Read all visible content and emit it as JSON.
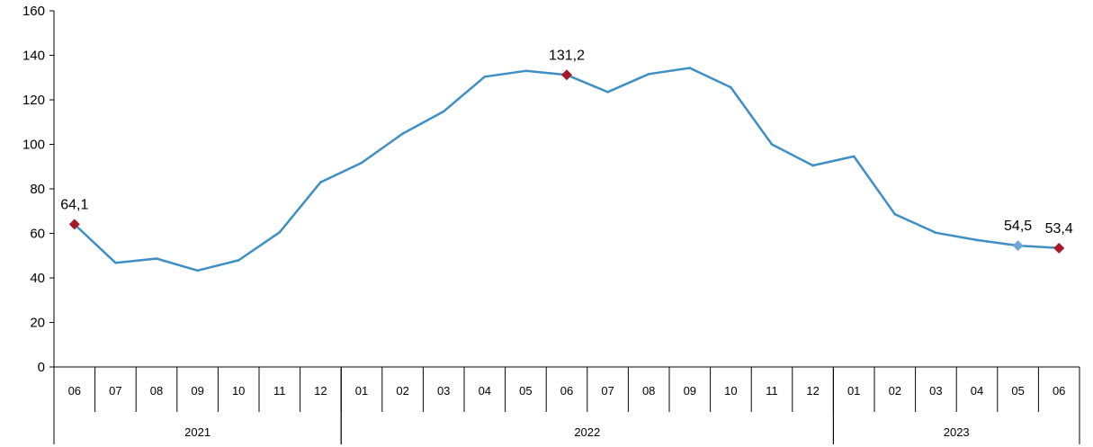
{
  "chart_data": {
    "type": "line",
    "title": "",
    "xlabel": "",
    "ylabel": "",
    "ylim": [
      0,
      160
    ],
    "yticks": [
      "0",
      "20",
      "40",
      "60",
      "80",
      "100",
      "120",
      "140",
      "160"
    ],
    "grid": false,
    "categories": [
      "06",
      "07",
      "08",
      "09",
      "10",
      "11",
      "12",
      "01",
      "02",
      "03",
      "04",
      "05",
      "06",
      "07",
      "08",
      "09",
      "10",
      "11",
      "12",
      "01",
      "02",
      "03",
      "04",
      "05",
      "06"
    ],
    "year_groups": [
      {
        "label": "2021",
        "start": 0,
        "end": 6
      },
      {
        "label": "2022",
        "start": 7,
        "end": 18
      },
      {
        "label": "2023",
        "start": 19,
        "end": 24
      }
    ],
    "series": [
      {
        "color": "#3d8fc4",
        "values": [
          64.1,
          46.8,
          48.7,
          43.3,
          47.9,
          60.5,
          83.0,
          91.7,
          104.8,
          114.8,
          130.4,
          133.0,
          131.2,
          123.5,
          131.6,
          134.3,
          125.6,
          100.0,
          90.5,
          94.6,
          68.6,
          60.3,
          57.0,
          54.5,
          53.4
        ]
      }
    ],
    "annotations": [
      {
        "index": 0,
        "text": "64,1",
        "marker": "diamond",
        "color": "#a5192b"
      },
      {
        "index": 12,
        "text": "131,2",
        "marker": "diamond",
        "color": "#a5192b"
      },
      {
        "index": 23,
        "text": "54,5",
        "marker": "diamond",
        "color": "#6fa8d6"
      },
      {
        "index": 24,
        "text": "53,4",
        "marker": "diamond",
        "color": "#a5192b"
      }
    ]
  }
}
